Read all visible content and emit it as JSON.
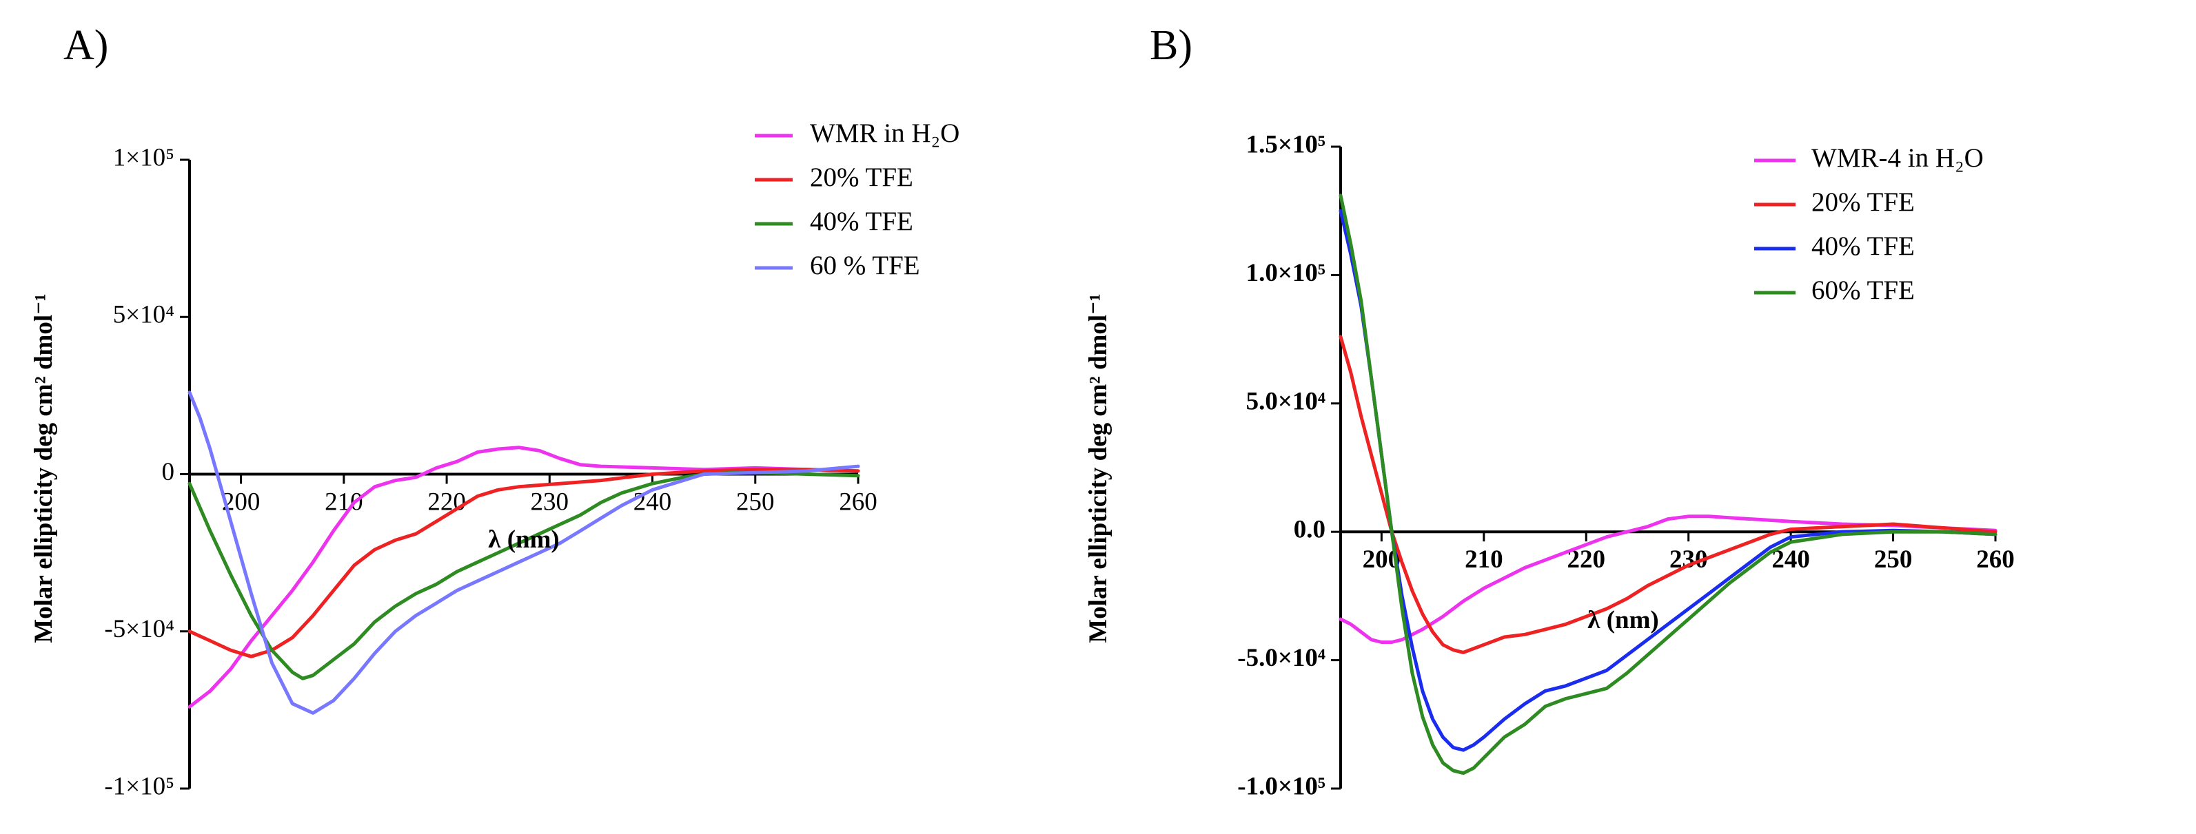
{
  "chart_data": [
    {
      "panel_label": "A)",
      "type": "line",
      "title": "",
      "xlabel": "λ (nm)",
      "ylabel": "Molar ellipticity deg cm² dmol⁻¹",
      "xlim": [
        195,
        260
      ],
      "ylim": [
        -100000,
        100000
      ],
      "x_ticks": [
        200,
        210,
        220,
        230,
        240,
        250,
        260
      ],
      "y_ticks": [
        {
          "value": -100000,
          "label": "-1×10⁵"
        },
        {
          "value": -50000,
          "label": "-5×10⁴"
        },
        {
          "value": 0,
          "label": "0"
        },
        {
          "value": 50000,
          "label": "5×10⁴"
        },
        {
          "value": 100000,
          "label": "1×10⁵"
        }
      ],
      "legend_position": "top-right",
      "series": [
        {
          "name": "WMR in H₂O",
          "color": "#ee33ee",
          "x": [
            195,
            197,
            199,
            201,
            203,
            205,
            207,
            209,
            211,
            213,
            215,
            217,
            219,
            221,
            223,
            225,
            227,
            229,
            231,
            233,
            235,
            240,
            245,
            250,
            255,
            260
          ],
          "y": [
            -74000,
            -69000,
            -62000,
            -53000,
            -45000,
            -37000,
            -28000,
            -18000,
            -9000,
            -4000,
            -2000,
            -1000,
            2000,
            4000,
            7000,
            8000,
            8500,
            7500,
            5000,
            3000,
            2500,
            2000,
            1500,
            2000,
            1500,
            1000
          ]
        },
        {
          "name": "20% TFE",
          "color": "#ee2222",
          "x": [
            195,
            197,
            199,
            201,
            203,
            205,
            207,
            209,
            211,
            213,
            215,
            217,
            219,
            221,
            223,
            225,
            227,
            229,
            231,
            235,
            240,
            245,
            250,
            255,
            260
          ],
          "y": [
            -50000,
            -53000,
            -56000,
            -58000,
            -56000,
            -52000,
            -45000,
            -37000,
            -29000,
            -24000,
            -21000,
            -19000,
            -15000,
            -11000,
            -7000,
            -5000,
            -4000,
            -3500,
            -3000,
            -2000,
            0,
            1000,
            1500,
            1500,
            1000
          ]
        },
        {
          "name": "40% TFE",
          "color": "#2e8b22",
          "x": [
            195,
            197,
            199,
            201,
            203,
            205,
            206,
            207,
            209,
            211,
            213,
            215,
            217,
            219,
            221,
            223,
            225,
            227,
            229,
            231,
            233,
            235,
            237,
            240,
            243,
            245,
            248,
            250,
            255,
            260
          ],
          "y": [
            -3000,
            -18000,
            -32000,
            -45000,
            -56000,
            -63000,
            -65000,
            -64000,
            -59000,
            -54000,
            -47000,
            -42000,
            -38000,
            -35000,
            -31000,
            -28000,
            -25000,
            -22000,
            -19000,
            -16000,
            -13000,
            -9000,
            -6000,
            -3000,
            -1000,
            0,
            500,
            500,
            0,
            -500
          ]
        },
        {
          "name": "60 % TFE",
          "color": "#7777ff",
          "x": [
            195,
            196,
            197,
            199,
            201,
            203,
            205,
            207,
            209,
            211,
            213,
            215,
            217,
            219,
            221,
            223,
            225,
            227,
            229,
            231,
            233,
            235,
            237,
            240,
            243,
            245,
            250,
            255,
            260
          ],
          "y": [
            26000,
            18000,
            8000,
            -15000,
            -38000,
            -60000,
            -73000,
            -76000,
            -72000,
            -65000,
            -57000,
            -50000,
            -45000,
            -41000,
            -37000,
            -34000,
            -31000,
            -28000,
            -25000,
            -22000,
            -18000,
            -14000,
            -10000,
            -5000,
            -2000,
            0,
            500,
            1000,
            2500
          ]
        }
      ]
    },
    {
      "panel_label": "B)",
      "type": "line",
      "title": "",
      "xlabel": "λ (nm)",
      "ylabel": "Molar ellipticity deg cm² dmol⁻¹",
      "xlim": [
        196,
        260
      ],
      "ylim": [
        -100000,
        150000
      ],
      "x_ticks": [
        200,
        210,
        220,
        230,
        240,
        250,
        260
      ],
      "y_ticks": [
        {
          "value": -100000,
          "label": "-1.0×10⁵"
        },
        {
          "value": -50000,
          "label": "-5.0×10⁴"
        },
        {
          "value": 0,
          "label": "0.0"
        },
        {
          "value": 50000,
          "label": "5.0×10⁴"
        },
        {
          "value": 100000,
          "label": "1.0×10⁵"
        },
        {
          "value": 150000,
          "label": "1.5×10⁵"
        }
      ],
      "legend_position": "top-right",
      "series": [
        {
          "name": "WMR-4 in H₂O",
          "color": "#ee33ee",
          "x": [
            196,
            197,
            198,
            199,
            200,
            201,
            202,
            204,
            206,
            208,
            210,
            212,
            214,
            216,
            218,
            220,
            222,
            224,
            226,
            228,
            230,
            232,
            234,
            236,
            238,
            240,
            245,
            250,
            255,
            260
          ],
          "y": [
            -34000,
            -36000,
            -39000,
            -42000,
            -43000,
            -43000,
            -42000,
            -38000,
            -33000,
            -27000,
            -22000,
            -18000,
            -14000,
            -11000,
            -8000,
            -5000,
            -2000,
            0,
            2000,
            5000,
            6000,
            6000,
            5500,
            5000,
            4500,
            4000,
            3000,
            2500,
            1500,
            500
          ]
        },
        {
          "name": "20% TFE",
          "color": "#ee2222",
          "x": [
            196,
            197,
            198,
            199,
            200,
            201,
            202,
            203,
            204,
            205,
            206,
            207,
            208,
            210,
            212,
            214,
            216,
            218,
            220,
            222,
            224,
            226,
            228,
            230,
            232,
            234,
            236,
            238,
            240,
            245,
            250,
            255,
            260
          ],
          "y": [
            76000,
            62000,
            45000,
            30000,
            15000,
            0,
            -12000,
            -23000,
            -32000,
            -39000,
            -44000,
            -46000,
            -47000,
            -44000,
            -41000,
            -40000,
            -38000,
            -36000,
            -33000,
            -30000,
            -26000,
            -21000,
            -17000,
            -13000,
            -10000,
            -7000,
            -4000,
            -1000,
            1000,
            2000,
            3000,
            1500,
            0
          ]
        },
        {
          "name": "40% TFE",
          "color": "#1a2cee",
          "x": [
            196,
            197,
            198,
            199,
            200,
            201,
            202,
            203,
            204,
            205,
            206,
            207,
            208,
            209,
            210,
            212,
            214,
            216,
            218,
            220,
            222,
            224,
            226,
            228,
            230,
            232,
            234,
            236,
            238,
            240,
            245,
            250,
            255,
            260
          ],
          "y": [
            125000,
            108000,
            88000,
            60000,
            30000,
            0,
            -25000,
            -45000,
            -62000,
            -73000,
            -80000,
            -84000,
            -85000,
            -83000,
            -80000,
            -73000,
            -67000,
            -62000,
            -60000,
            -57000,
            -54000,
            -48000,
            -42000,
            -36000,
            -30000,
            -24000,
            -18000,
            -12000,
            -6000,
            -2000,
            0,
            500,
            0,
            -1000
          ]
        },
        {
          "name": "60% TFE",
          "color": "#2e8b22",
          "x": [
            196,
            197,
            198,
            199,
            200,
            201,
            202,
            203,
            204,
            205,
            206,
            207,
            208,
            209,
            210,
            212,
            214,
            216,
            218,
            220,
            222,
            224,
            226,
            228,
            230,
            232,
            234,
            236,
            238,
            240,
            245,
            250,
            255,
            260
          ],
          "y": [
            131000,
            112000,
            90000,
            60000,
            30000,
            0,
            -30000,
            -55000,
            -72000,
            -83000,
            -90000,
            -93000,
            -94000,
            -92000,
            -88000,
            -80000,
            -75000,
            -68000,
            -65000,
            -63000,
            -61000,
            -55000,
            -48000,
            -41000,
            -34000,
            -27000,
            -20000,
            -14000,
            -8000,
            -4000,
            -1000,
            0,
            0,
            -1000
          ]
        }
      ]
    }
  ]
}
